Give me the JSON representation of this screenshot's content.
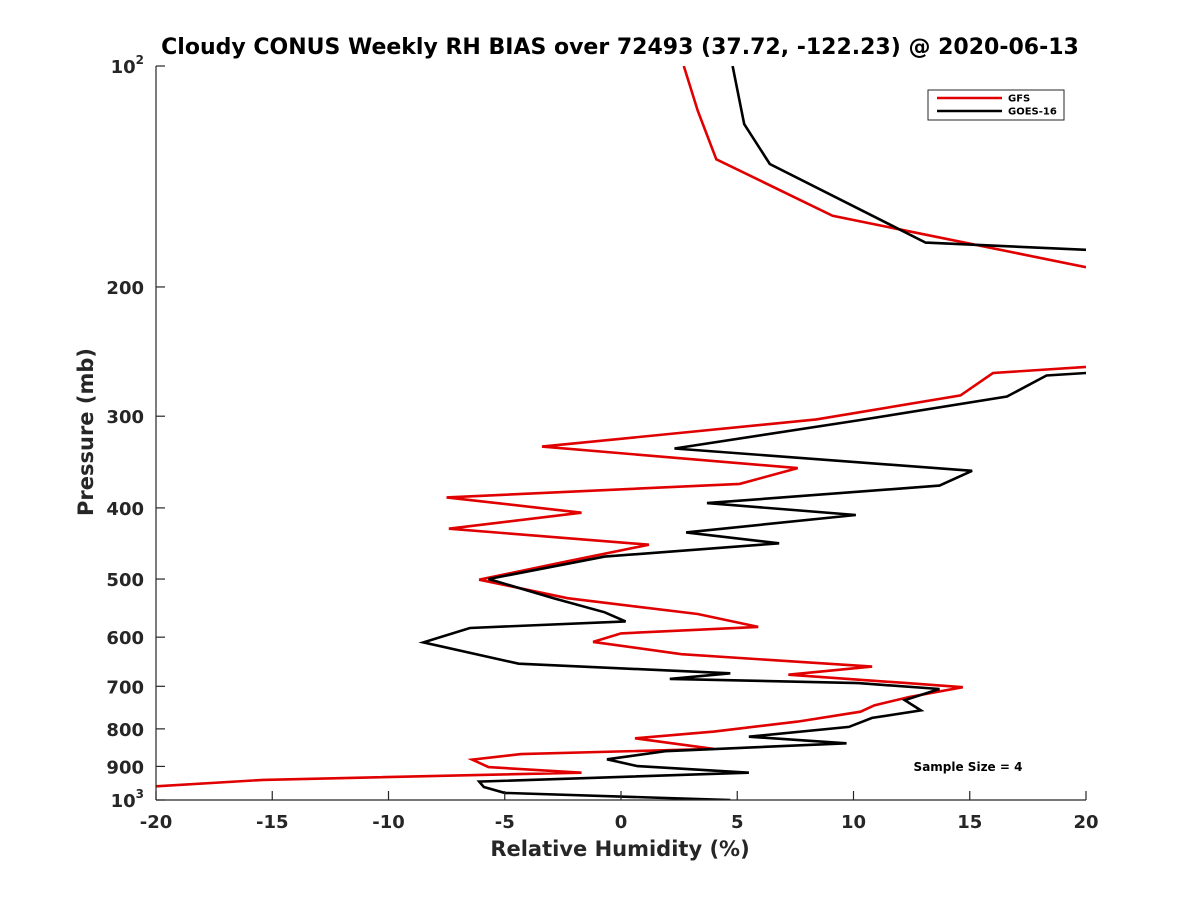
{
  "chart_data": {
    "type": "line",
    "title": "Cloudy CONUS Weekly RH BIAS over 72493 (37.72, -122.23) @ 2020-06-13",
    "xlabel": "Relative Humidity (%)",
    "ylabel": "Pressure (mb)",
    "xlim": [
      -20,
      20
    ],
    "ylim": [
      100,
      1000
    ],
    "y_scale": "log",
    "y_reversed": true,
    "x_ticks": [
      "-20",
      "-15",
      "-10",
      "-5",
      "0",
      "5",
      "10",
      "15",
      "20"
    ],
    "y_ticks": [
      {
        "base": "10",
        "exp": "2",
        "value": 100
      },
      {
        "label": "200",
        "value": 200
      },
      {
        "label": "300",
        "value": 300
      },
      {
        "label": "400",
        "value": 400
      },
      {
        "label": "500",
        "value": 500
      },
      {
        "label": "600",
        "value": 600
      },
      {
        "label": "700",
        "value": 700
      },
      {
        "label": "800",
        "value": 800
      },
      {
        "label": "900",
        "value": 900
      },
      {
        "base": "10",
        "exp": "3",
        "value": 1000
      }
    ],
    "legend_position": "top-right",
    "annotation": "Sample Size = 4",
    "series": [
      {
        "name": "GFS",
        "color": "#e00000",
        "segments": [
          [
            [
              2.7,
              100
            ],
            [
              3.3,
              115
            ],
            [
              4.1,
              134
            ],
            [
              9.1,
              160
            ],
            [
              20,
              188
            ]
          ],
          [
            [
              20,
              257
            ],
            [
              16.0,
              262
            ],
            [
              14.6,
              281
            ],
            [
              8.4,
              303
            ],
            [
              -3.4,
              330
            ],
            [
              7.6,
              353
            ],
            [
              5.1,
              371
            ],
            [
              -7.5,
              387
            ],
            [
              -1.7,
              406
            ],
            [
              -7.4,
              427
            ],
            [
              1.2,
              449
            ],
            [
              -2.3,
              473
            ],
            [
              -6.1,
              501
            ],
            [
              -2.3,
              531
            ],
            [
              3.3,
              558
            ],
            [
              5.9,
              581
            ],
            [
              0,
              593
            ],
            [
              -1.2,
              609
            ],
            [
              2.6,
              633
            ],
            [
              10.8,
              658
            ],
            [
              7.2,
              675
            ],
            [
              12.3,
              693
            ],
            [
              14.7,
              702
            ],
            [
              12.4,
              724
            ],
            [
              10.9,
              743
            ],
            [
              10.3,
              758
            ],
            [
              7.6,
              782
            ],
            [
              4.0,
              807
            ],
            [
              0.6,
              824
            ],
            [
              4.0,
              852
            ],
            [
              -4.3,
              866
            ],
            [
              -6.4,
              881
            ],
            [
              -5.7,
              902
            ],
            [
              -1.7,
              918
            ],
            [
              -15.4,
              939
            ],
            [
              -20,
              958
            ]
          ]
        ]
      },
      {
        "name": "GOES-16",
        "color": "#000000",
        "segments": [
          [
            [
              4.8,
              100
            ],
            [
              5.3,
              120
            ],
            [
              6.4,
              136
            ],
            [
              13.1,
              174
            ],
            [
              20,
              178
            ]
          ],
          [
            [
              20,
              262
            ],
            [
              18.3,
              264
            ],
            [
              16.6,
              282
            ],
            [
              10.2,
              304
            ],
            [
              2.3,
              332
            ],
            [
              15.1,
              356
            ],
            [
              13.7,
              373
            ],
            [
              3.7,
              394
            ],
            [
              10.1,
              409
            ],
            [
              2.8,
              432
            ],
            [
              6.8,
              447
            ],
            [
              -0.7,
              466
            ],
            [
              -5.7,
              500
            ],
            [
              -2.9,
              531
            ],
            [
              -0.7,
              555
            ],
            [
              0.2,
              571
            ],
            [
              -6.5,
              583
            ],
            [
              -8.5,
              610
            ],
            [
              -4.4,
              652
            ],
            [
              4.7,
              672
            ],
            [
              2.1,
              684
            ],
            [
              10.2,
              693
            ],
            [
              13.7,
              706
            ],
            [
              12.2,
              731
            ],
            [
              12.9,
              755
            ],
            [
              10.8,
              773
            ],
            [
              9.8,
              795
            ],
            [
              5.5,
              820
            ],
            [
              9.7,
              837
            ],
            [
              1.9,
              858
            ],
            [
              -0.6,
              880
            ],
            [
              0.7,
              899
            ],
            [
              5.5,
              918
            ],
            [
              -6.1,
              944
            ],
            [
              -5.9,
              960
            ],
            [
              -5.0,
              978
            ],
            [
              4.7,
              1000
            ]
          ]
        ]
      }
    ]
  }
}
